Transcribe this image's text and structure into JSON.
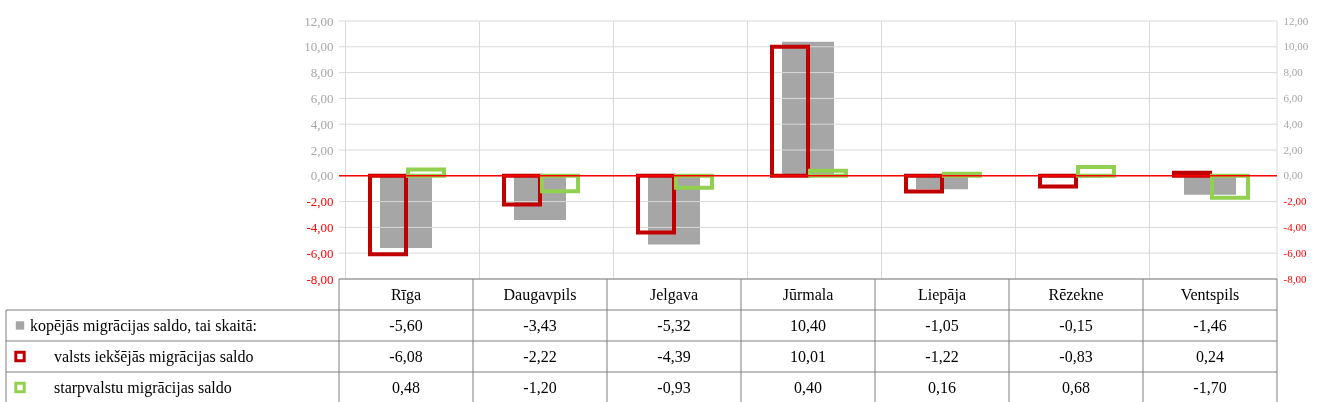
{
  "chart_data": {
    "type": "bar",
    "categories": [
      "Rīga",
      "Daugavpils",
      "Jelgava",
      "Jūrmala",
      "Liepāja",
      "Rēzekne",
      "Ventspils"
    ],
    "series": [
      {
        "name": "kopējās migrācijas saldo, tai skaitā:",
        "color": "#a6a6a6",
        "values": [
          -5.6,
          -3.43,
          -5.32,
          10.4,
          -1.05,
          -0.15,
          -1.46
        ],
        "value_labels": [
          "-5,60",
          "-3,43",
          "-5,32",
          "10,40",
          "-1,05",
          "-0,15",
          "-1,46"
        ]
      },
      {
        "name": "valsts iekšējās migrācijas saldo",
        "color": "#c00000",
        "values": [
          -6.08,
          -2.22,
          -4.39,
          10.01,
          -1.22,
          -0.83,
          0.24
        ],
        "value_labels": [
          "-6,08",
          "-2,22",
          "-4,39",
          "10,01",
          "-1,22",
          "-0,83",
          "0,24"
        ]
      },
      {
        "name": "starpvalstu migrācijas saldo",
        "color": "#92d050",
        "values": [
          0.48,
          -1.2,
          -0.93,
          0.4,
          0.16,
          0.68,
          -1.7
        ],
        "value_labels": [
          "0,48",
          "-1,20",
          "-0,93",
          "0,40",
          "0,16",
          "0,68",
          "-1,70"
        ]
      }
    ],
    "ylim": [
      -8,
      12
    ],
    "yticks": [
      {
        "value": -8,
        "label": "-8,00"
      },
      {
        "value": -6,
        "label": "-6,00"
      },
      {
        "value": -4,
        "label": "-4,00"
      },
      {
        "value": -2,
        "label": "-2,00"
      },
      {
        "value": 0,
        "label": "0,00"
      },
      {
        "value": 2,
        "label": "2,00"
      },
      {
        "value": 4,
        "label": "4,00"
      },
      {
        "value": 6,
        "label": "6,00"
      },
      {
        "value": 8,
        "label": "8,00"
      },
      {
        "value": 10,
        "label": "10,00"
      },
      {
        "value": 12,
        "label": "12,00"
      }
    ],
    "y2lim": [
      -8,
      12
    ],
    "y2ticks": [
      {
        "value": -8,
        "label": "-8,00"
      },
      {
        "value": -6,
        "label": "-6,00"
      },
      {
        "value": -4,
        "label": "-4,00"
      },
      {
        "value": -2,
        "label": "-2,00"
      },
      {
        "value": 0,
        "label": "0,00"
      },
      {
        "value": 2,
        "label": "2,00"
      },
      {
        "value": 4,
        "label": "4,00"
      },
      {
        "value": 6,
        "label": "6,00"
      },
      {
        "value": 8,
        "label": "8,00"
      },
      {
        "value": 10,
        "label": "10,00"
      },
      {
        "value": 12,
        "label": "12,00"
      }
    ],
    "ref_lines": [
      {
        "axis": "y",
        "value": 0,
        "color": "#ff0000"
      }
    ],
    "grid": true,
    "legend": "bottom"
  }
}
